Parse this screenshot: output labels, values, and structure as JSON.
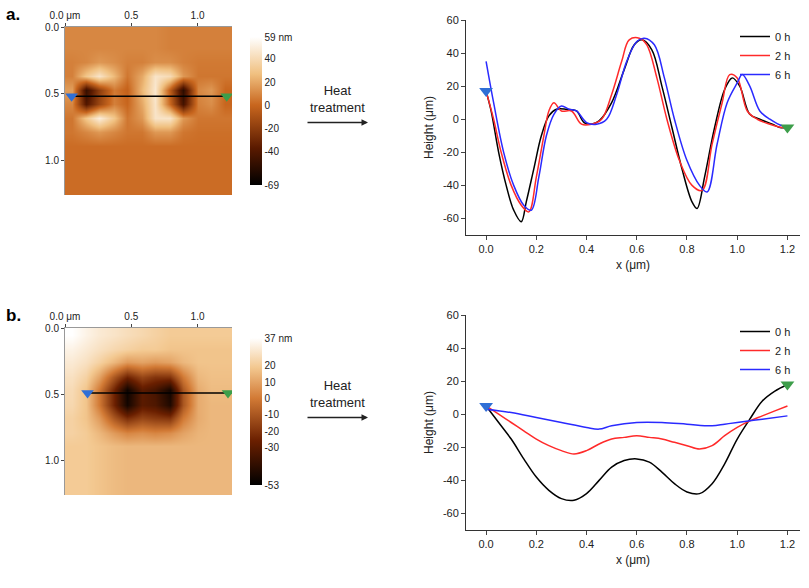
{
  "chart_data": [
    {
      "type": "heatmap",
      "panel": "a.",
      "x": [
        0.05,
        0.16,
        0.26,
        0.37,
        0.47,
        0.58,
        0.68,
        0.79,
        0.89,
        1.0,
        1.1,
        1.21
      ],
      "y": [
        0.05,
        0.16,
        0.26,
        0.37,
        0.47,
        0.58,
        0.68,
        0.79,
        0.89,
        1.0,
        1.1,
        1.21
      ],
      "z": [
        [
          10,
          10,
          10,
          10,
          10,
          10,
          10,
          8,
          8,
          8,
          8,
          8
        ],
        [
          10,
          10,
          10,
          10,
          10,
          10,
          10,
          8,
          8,
          8,
          8,
          8
        ],
        [
          8,
          10,
          15,
          12,
          8,
          8,
          12,
          12,
          8,
          6,
          6,
          6
        ],
        [
          8,
          30,
          45,
          25,
          5,
          20,
          45,
          40,
          15,
          5,
          5,
          5
        ],
        [
          17,
          -50,
          -20,
          6,
          -2,
          25,
          47,
          -5,
          -54,
          10,
          15,
          0
        ],
        [
          10,
          -40,
          -15,
          8,
          0,
          20,
          45,
          0,
          -45,
          8,
          12,
          0
        ],
        [
          5,
          30,
          50,
          30,
          5,
          15,
          45,
          45,
          15,
          5,
          5,
          5
        ],
        [
          5,
          10,
          15,
          10,
          5,
          5,
          15,
          15,
          5,
          3,
          3,
          3
        ],
        [
          2,
          2,
          2,
          2,
          2,
          2,
          2,
          2,
          2,
          2,
          2,
          2
        ],
        [
          2,
          2,
          2,
          2,
          2,
          2,
          2,
          2,
          2,
          2,
          2,
          2
        ],
        [
          2,
          2,
          2,
          2,
          2,
          2,
          2,
          2,
          2,
          2,
          2,
          2
        ],
        [
          2,
          2,
          2,
          2,
          2,
          2,
          2,
          2,
          2,
          2,
          2,
          2
        ]
      ],
      "zlim": [
        -69,
        59
      ],
      "zticks": [
        {
          "value": 59,
          "label": "59 nm"
        },
        40,
        20,
        0,
        -20,
        -40,
        -69
      ],
      "xlim": [
        0,
        1.26
      ],
      "ylim": [
        1.26,
        0
      ],
      "xticks": [
        {
          "value": 0,
          "label": "0.0 μm"
        },
        0.5,
        {
          "value": 1,
          "label": "1.0"
        }
      ],
      "yticks": [
        {
          "value": 0,
          "label": "0.0"
        },
        0.5,
        {
          "value": 1,
          "label": "1.0"
        }
      ],
      "profile": {
        "x": [
          0.05,
          1.22
        ],
        "y": [
          0.52,
          0.52
        ]
      },
      "grid": false
    },
    {
      "type": "line",
      "annotation": "Heat treatment",
      "xlabel": "x (μm)",
      "ylabel": "Height (μm)",
      "xlim": [
        -0.08,
        1.25
      ],
      "ylim": [
        -70,
        60
      ],
      "xticks": [
        {
          "value": 0,
          "label": "0.0"
        },
        0.2,
        0.4,
        0.6,
        0.8,
        {
          "value": 1,
          "label": "1.0"
        },
        1.2
      ],
      "yticks": [
        -60,
        -40,
        -20,
        0,
        20,
        40,
        60
      ],
      "legend": "top right",
      "grid": false,
      "series": [
        {
          "name": "0 h",
          "color": "#000000",
          "x": [
            0.0,
            0.02,
            0.05,
            0.08,
            0.11,
            0.14,
            0.16,
            0.19,
            0.22,
            0.25,
            0.28,
            0.32,
            0.36,
            0.39,
            0.42,
            0.45,
            0.5,
            0.55,
            0.59,
            0.62,
            0.66,
            0.7,
            0.74,
            0.78,
            0.82,
            0.84,
            0.87,
            0.91,
            0.95,
            0.98,
            1.01,
            1.05,
            1.09,
            1.14,
            1.17,
            1.2
          ],
          "values": [
            17,
            5,
            -20,
            -40,
            -55,
            -62,
            -50,
            -30,
            -10,
            2,
            6,
            6,
            5,
            -2,
            -3,
            -1,
            10,
            30,
            45,
            48,
            42,
            20,
            -5,
            -30,
            -50,
            -54,
            -35,
            -5,
            18,
            25,
            20,
            3,
            0,
            -3,
            -5,
            -5
          ]
        },
        {
          "name": "2 h",
          "color": "#ff2a2a",
          "x": [
            0.0,
            0.03,
            0.06,
            0.1,
            0.14,
            0.17,
            0.2,
            0.23,
            0.25,
            0.27,
            0.3,
            0.34,
            0.38,
            0.42,
            0.46,
            0.5,
            0.54,
            0.57,
            0.61,
            0.64,
            0.68,
            0.72,
            0.77,
            0.82,
            0.86,
            0.9,
            0.94,
            0.97,
            1.0,
            1.04,
            1.08,
            1.13,
            1.18,
            1.2
          ],
          "values": [
            17,
            0,
            -20,
            -40,
            -52,
            -56,
            -35,
            -10,
            5,
            10,
            5,
            5,
            -3,
            -3,
            0,
            15,
            35,
            48,
            49,
            45,
            25,
            0,
            -25,
            -40,
            -43,
            -15,
            10,
            27,
            25,
            5,
            0,
            -3,
            -5,
            -5
          ]
        },
        {
          "name": "6 h",
          "color": "#2a2aff",
          "x": [
            0.0,
            0.03,
            0.07,
            0.11,
            0.15,
            0.18,
            0.21,
            0.24,
            0.27,
            0.3,
            0.33,
            0.36,
            0.4,
            0.44,
            0.48,
            0.52,
            0.56,
            0.6,
            0.63,
            0.67,
            0.71,
            0.75,
            0.8,
            0.85,
            0.88,
            0.92,
            0.96,
            1.0,
            1.02,
            1.05,
            1.09,
            1.13,
            1.18,
            1.2
          ],
          "values": [
            35,
            10,
            -20,
            -40,
            -52,
            -55,
            -35,
            -10,
            3,
            8,
            6,
            5,
            -2,
            -3,
            0,
            15,
            35,
            47,
            49,
            45,
            25,
            0,
            -25,
            -40,
            -44,
            -15,
            10,
            22,
            27,
            20,
            5,
            0,
            -4,
            -4
          ]
        }
      ]
    },
    {
      "type": "heatmap",
      "panel": "b.",
      "x": [
        0.05,
        0.16,
        0.26,
        0.37,
        0.47,
        0.58,
        0.68,
        0.79,
        0.89,
        1.0,
        1.1,
        1.21
      ],
      "y": [
        0.05,
        0.16,
        0.26,
        0.37,
        0.47,
        0.58,
        0.68,
        0.79,
        0.89,
        1.0,
        1.1,
        1.21
      ],
      "z": [
        [
          37,
          33,
          30,
          28,
          26,
          24,
          22,
          20,
          20,
          20,
          20,
          20
        ],
        [
          33,
          30,
          27,
          24,
          22,
          20,
          20,
          18,
          18,
          18,
          18,
          18
        ],
        [
          30,
          27,
          22,
          15,
          8,
          10,
          8,
          10,
          15,
          18,
          18,
          18
        ],
        [
          27,
          22,
          10,
          -10,
          -25,
          -15,
          -20,
          -20,
          0,
          15,
          17,
          17
        ],
        [
          25,
          18,
          0,
          -25,
          -50,
          -30,
          -35,
          -48,
          -10,
          12,
          16,
          16
        ],
        [
          24,
          18,
          0,
          -25,
          -48,
          -30,
          -33,
          -45,
          -10,
          12,
          15,
          15
        ],
        [
          22,
          18,
          8,
          -10,
          -22,
          -15,
          -18,
          -20,
          0,
          12,
          15,
          15
        ],
        [
          22,
          20,
          15,
          8,
          3,
          5,
          3,
          5,
          10,
          14,
          15,
          15
        ],
        [
          20,
          20,
          18,
          16,
          15,
          15,
          15,
          15,
          15,
          15,
          15,
          15
        ],
        [
          20,
          20,
          18,
          16,
          15,
          15,
          15,
          15,
          15,
          15,
          15,
          15
        ],
        [
          20,
          20,
          18,
          16,
          15,
          15,
          15,
          15,
          15,
          15,
          15,
          15
        ],
        [
          20,
          20,
          18,
          16,
          15,
          15,
          15,
          15,
          15,
          15,
          15,
          15
        ]
      ],
      "zlim": [
        -53,
        37
      ],
      "zticks": [
        {
          "value": 37,
          "label": "37 nm"
        },
        20,
        10,
        0,
        -10,
        -20,
        -30,
        -53
      ],
      "xlim": [
        0,
        1.26
      ],
      "ylim": [
        1.26,
        0
      ],
      "xticks": [
        {
          "value": 0,
          "label": "0.0 μm"
        },
        0.5,
        {
          "value": 1,
          "label": "1.0"
        }
      ],
      "yticks": [
        {
          "value": 0,
          "label": "0.0"
        },
        0.5,
        {
          "value": 1,
          "label": "1.0"
        }
      ],
      "profile": {
        "x": [
          0.17,
          1.23
        ],
        "y": [
          0.49,
          0.49
        ]
      },
      "grid": false
    },
    {
      "type": "line",
      "annotation": "Heat treatment",
      "xlabel": "x (μm)",
      "ylabel": "Height (μm)",
      "xlim": [
        -0.08,
        1.25
      ],
      "ylim": [
        -70,
        60
      ],
      "xticks": [
        {
          "value": 0,
          "label": "0.0"
        },
        0.2,
        0.4,
        0.6,
        0.8,
        {
          "value": 1,
          "label": "1.0"
        },
        1.2
      ],
      "yticks": [
        -60,
        -40,
        -20,
        0,
        20,
        40,
        60
      ],
      "legend": "top right",
      "grid": false,
      "series": [
        {
          "name": "0 h",
          "color": "#000000",
          "x": [
            0.0,
            0.05,
            0.1,
            0.15,
            0.2,
            0.25,
            0.3,
            0.35,
            0.4,
            0.45,
            0.5,
            0.55,
            0.6,
            0.65,
            0.7,
            0.75,
            0.8,
            0.85,
            0.9,
            0.95,
            1.0,
            1.05,
            1.1,
            1.15,
            1.2
          ],
          "values": [
            5,
            -5,
            -15,
            -27,
            -38,
            -46,
            -51,
            -52,
            -48,
            -40,
            -32,
            -28,
            -27,
            -29,
            -35,
            -42,
            -47,
            -48,
            -42,
            -30,
            -15,
            -3,
            8,
            14,
            18
          ]
        },
        {
          "name": "2 h",
          "color": "#ff2a2a",
          "x": [
            0.0,
            0.05,
            0.1,
            0.15,
            0.2,
            0.25,
            0.3,
            0.35,
            0.4,
            0.45,
            0.5,
            0.55,
            0.6,
            0.65,
            0.7,
            0.75,
            0.8,
            0.85,
            0.9,
            0.95,
            1.0,
            1.05,
            1.1,
            1.15,
            1.2
          ],
          "values": [
            5,
            0,
            -5,
            -10,
            -15,
            -19,
            -22,
            -24,
            -22,
            -18,
            -15,
            -14,
            -13,
            -14,
            -15,
            -17,
            -19,
            -21,
            -19,
            -13,
            -8,
            -4,
            -1,
            2,
            5
          ]
        },
        {
          "name": "6 h",
          "color": "#2a2aff",
          "x": [
            0.0,
            0.1,
            0.2,
            0.3,
            0.4,
            0.45,
            0.5,
            0.6,
            0.7,
            0.8,
            0.9,
            0.95,
            1.0,
            1.1,
            1.2
          ],
          "values": [
            3,
            1,
            -2,
            -5,
            -8,
            -9,
            -7,
            -5,
            -5,
            -6,
            -7,
            -6,
            -5,
            -3,
            -1
          ]
        }
      ]
    }
  ]
}
